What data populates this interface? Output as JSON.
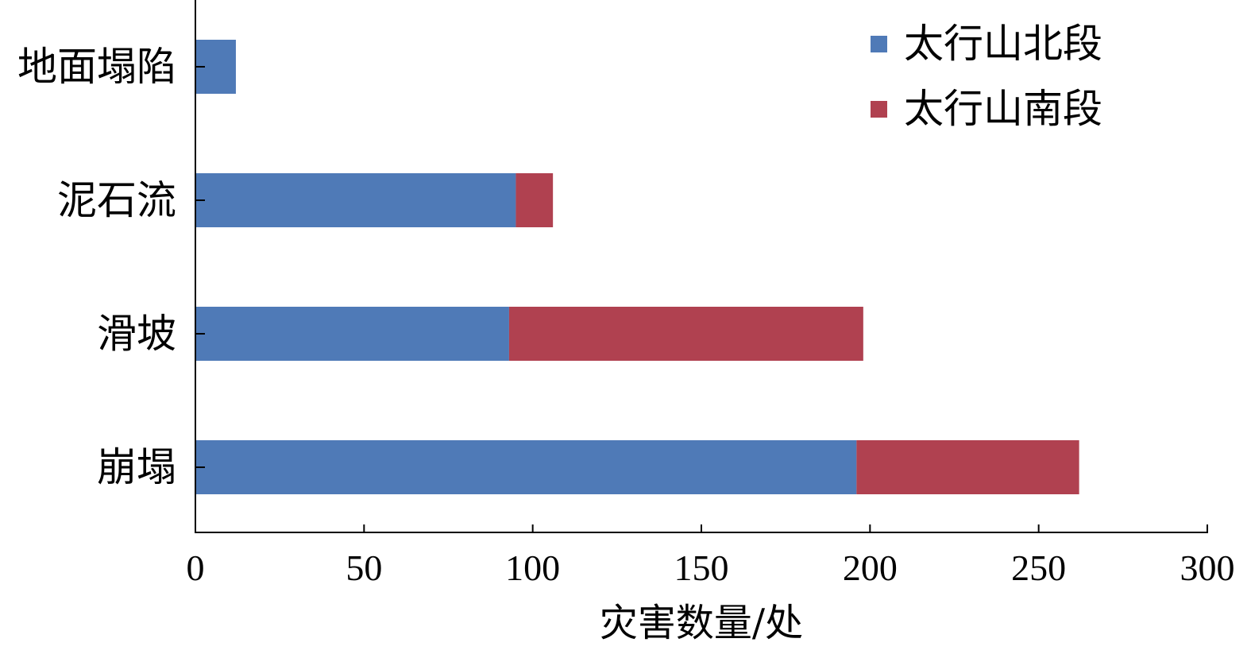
{
  "chart_data": {
    "type": "bar",
    "orientation": "horizontal",
    "stacked": true,
    "categories": [
      "地面塌陷",
      "泥石流",
      "滑坡",
      "崩塌"
    ],
    "series": [
      {
        "name": "太行山北段",
        "values": [
          12,
          95,
          93,
          196
        ],
        "color": "#4f7ab7"
      },
      {
        "name": "太行山南段",
        "values": [
          0,
          11,
          105,
          66
        ],
        "color": "#b04150"
      }
    ],
    "xlabel": "灾害数量/处",
    "ylabel": "",
    "xlim": [
      0,
      300
    ],
    "xticks": [
      0,
      50,
      100,
      150,
      200,
      250,
      300
    ],
    "grid": false,
    "legend_position": "top-right"
  }
}
